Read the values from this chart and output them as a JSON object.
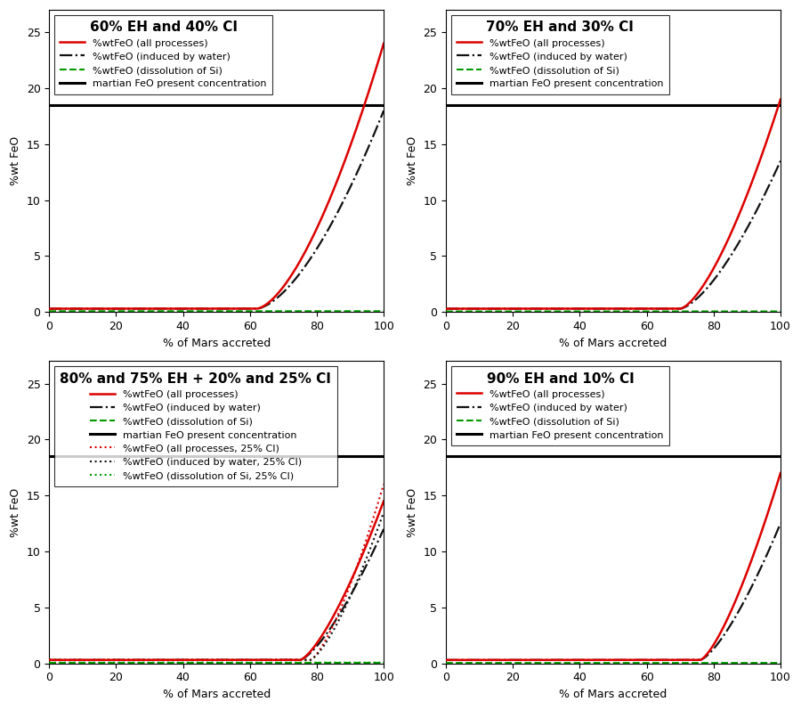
{
  "panels": [
    {
      "title": "60% EH and 40% CI",
      "onset": 62,
      "red_end": 24.0,
      "black_end": 18.0,
      "green_val": 0.08,
      "has_extra": false,
      "curve_power": 1.6
    },
    {
      "title": "70% EH and 30% CI",
      "onset": 70,
      "red_end": 19.0,
      "black_end": 13.5,
      "green_val": 0.06,
      "has_extra": false,
      "curve_power": 1.5
    },
    {
      "title": "80% and 75% EH + 20% and 25% CI",
      "onset": 75,
      "red_end": 14.5,
      "black_end": 12.0,
      "green_val": 0.05,
      "has_extra": true,
      "onset2": 78,
      "red2_end": 16.0,
      "black2_end": 13.5,
      "curve_power": 1.4
    },
    {
      "title": "90% EH and 10% CI",
      "onset": 76,
      "red_end": 17.0,
      "black_end": 12.5,
      "green_val": 0.04,
      "has_extra": false,
      "curve_power": 1.4
    }
  ],
  "martian_feo": 18.5,
  "ylim": [
    0,
    27
  ],
  "xlim": [
    0,
    100
  ],
  "yticks": [
    0,
    5,
    10,
    15,
    20,
    25
  ],
  "xticks": [
    0,
    20,
    40,
    60,
    80,
    100
  ],
  "xtick_labels": [
    "0",
    "20",
    "40",
    "60",
    "80",
    "100"
  ],
  "ylabel": "%wt FeO",
  "xlabel": "% of Mars accreted",
  "legend_labels_common": [
    "%wtFeO (all processes)",
    "%wtFeO (induced by water)",
    "%wtFeO (dissolution of Si)",
    "martian FeO present concentration"
  ],
  "legend_labels_extra": [
    "%wtFeO (all processes, 25% CI)",
    "%wtFeO (induced by water, 25% CI)",
    "%wtFeO (dissolution of Si, 25% CI)"
  ],
  "colors": {
    "red": "#dd0000",
    "black_dash": "#111111",
    "green_dash": "#009900",
    "black_solid": "#000000"
  },
  "base_val": 0.3,
  "figsize": [
    9.0,
    7.97
  ],
  "dpi": 100
}
